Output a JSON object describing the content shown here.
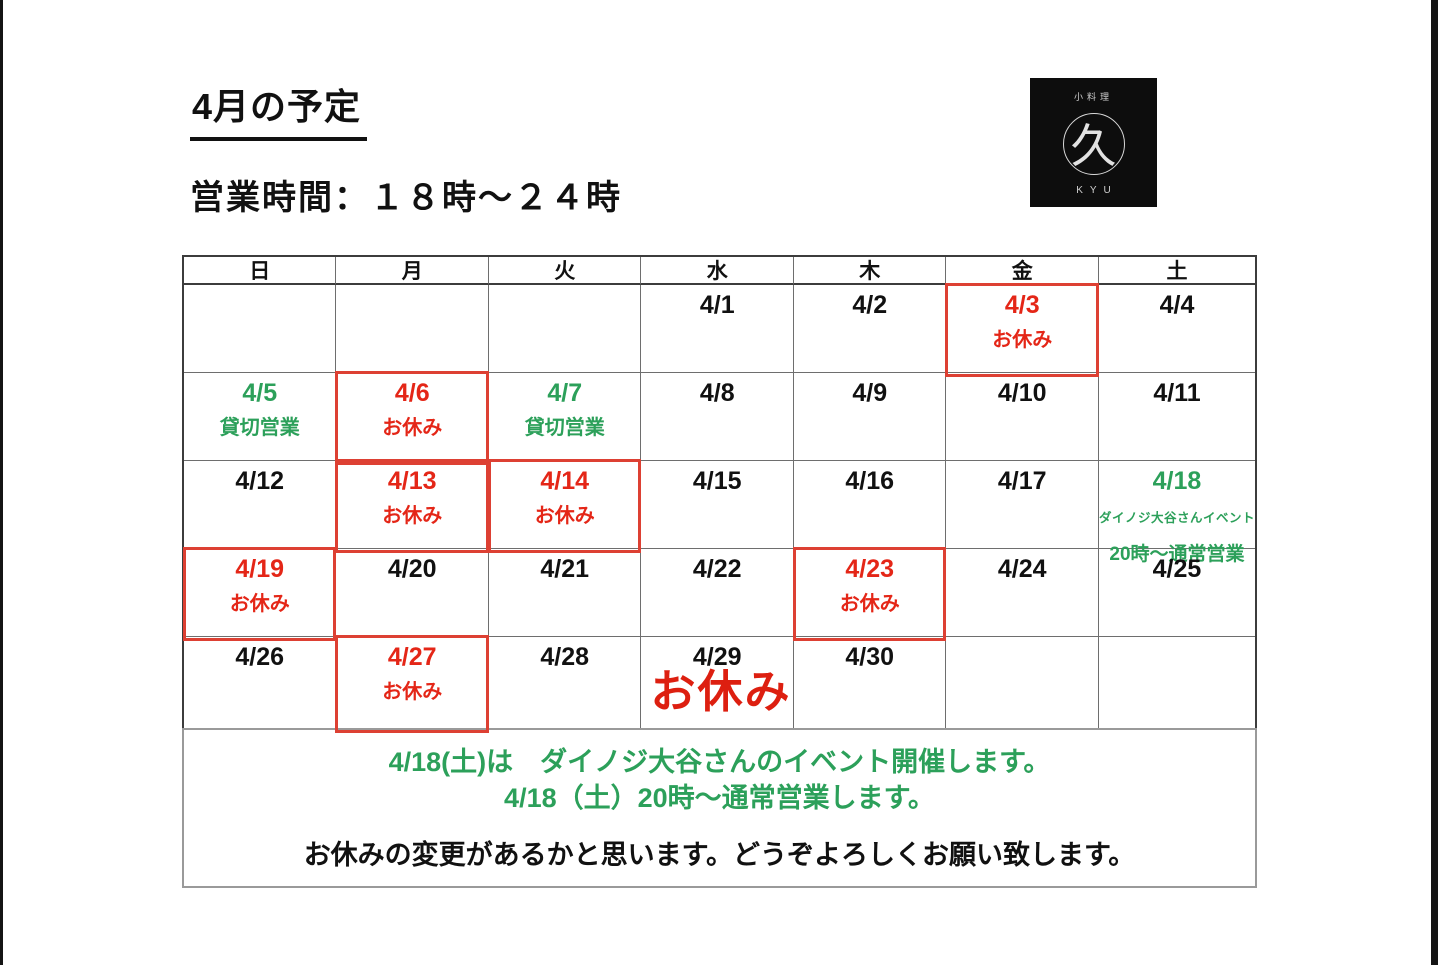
{
  "header": {
    "title": "4月の予定",
    "hours": "営業時間：１８時〜２４時"
  },
  "logo": {
    "top_label": "小料理",
    "mark": "久",
    "bottom_label": "KYU"
  },
  "calendar": {
    "weekdays": [
      "日",
      "月",
      "火",
      "水",
      "木",
      "金",
      "土"
    ],
    "rows": [
      [
        {
          "date": "",
          "style": "empty"
        },
        {
          "date": "",
          "style": "empty"
        },
        {
          "date": "",
          "style": "empty"
        },
        {
          "date": "4/1",
          "style": "normal"
        },
        {
          "date": "4/2",
          "style": "normal"
        },
        {
          "date": "4/3",
          "note": "お休み",
          "style": "closed",
          "boxed": true
        },
        {
          "date": "4/4",
          "style": "normal"
        }
      ],
      [
        {
          "date": "4/5",
          "note": "貸切営業",
          "style": "reserved"
        },
        {
          "date": "4/6",
          "note": "お休み",
          "style": "closed",
          "boxed": true
        },
        {
          "date": "4/7",
          "note": "貸切営業",
          "style": "reserved"
        },
        {
          "date": "4/8",
          "style": "normal"
        },
        {
          "date": "4/9",
          "style": "normal"
        },
        {
          "date": "4/10",
          "style": "normal"
        },
        {
          "date": "4/11",
          "style": "normal"
        }
      ],
      [
        {
          "date": "4/12",
          "style": "normal"
        },
        {
          "date": "4/13",
          "note": "お休み",
          "style": "closed",
          "boxed": true
        },
        {
          "date": "4/14",
          "note": "お休み",
          "style": "closed",
          "boxed": true
        },
        {
          "date": "4/15",
          "style": "normal"
        },
        {
          "date": "4/16",
          "style": "normal"
        },
        {
          "date": "4/17",
          "style": "normal"
        },
        {
          "date": "4/18",
          "style": "event",
          "note_small": "ダイノジ大谷さんイベント",
          "note_large": "20時〜通常営業"
        }
      ],
      [
        {
          "date": "4/19",
          "note": "お休み",
          "style": "closed",
          "boxed": true
        },
        {
          "date": "4/20",
          "style": "normal"
        },
        {
          "date": "4/21",
          "style": "normal"
        },
        {
          "date": "4/22",
          "style": "normal"
        },
        {
          "date": "4/23",
          "note": "お休み",
          "style": "closed",
          "boxed": true
        },
        {
          "date": "4/24",
          "style": "normal"
        },
        {
          "date": "4/25",
          "style": "normal"
        }
      ],
      [
        {
          "date": "4/26",
          "style": "normal"
        },
        {
          "date": "4/27",
          "note": "お休み",
          "style": "closed",
          "boxed": true
        },
        {
          "date": "4/28",
          "style": "normal"
        },
        {
          "date": "4/29",
          "style": "normal"
        },
        {
          "date": "4/30",
          "style": "normal"
        },
        {
          "date": "",
          "style": "empty"
        },
        {
          "date": "",
          "style": "empty"
        }
      ]
    ]
  },
  "overlay": {
    "closed_note": "お休み"
  },
  "footer": {
    "event_line1": "4/18(土)は　ダイノジ大谷さんのイベント開催します。",
    "event_line2": "4/18（土）20時〜通常営業します。",
    "notice": "お休みの変更があるかと思います。どうぞよろしくお願い致します。"
  },
  "colors": {
    "green": "#2ca05a",
    "red_text": "#e42617",
    "red_box": "#dd4033"
  }
}
